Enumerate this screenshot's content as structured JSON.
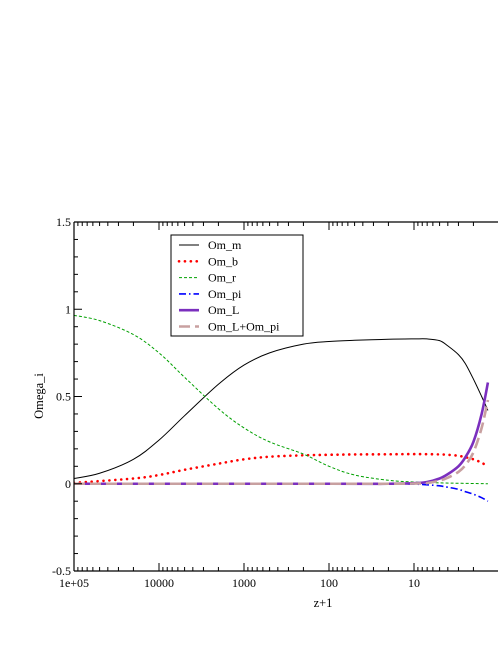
{
  "chart_data": {
    "type": "line",
    "title": "",
    "xlabel": "z+1",
    "ylabel": "Omega_i",
    "x_scale": "log",
    "x_reversed": true,
    "xlim": [
      100000,
      1.35
    ],
    "ylim": [
      -0.5,
      1.5
    ],
    "x_ticks": [
      {
        "value": 100000,
        "label": "1e+05"
      },
      {
        "value": 10000,
        "label": "10000"
      },
      {
        "value": 1000,
        "label": "1000"
      },
      {
        "value": 100,
        "label": "100"
      },
      {
        "value": 10,
        "label": "10"
      }
    ],
    "y_ticks": [
      {
        "value": -0.5,
        "label": "-0.5"
      },
      {
        "value": 0,
        "label": "0"
      },
      {
        "value": 0.5,
        "label": "0.5"
      },
      {
        "value": 1,
        "label": "1"
      },
      {
        "value": 1.5,
        "label": "1.5"
      }
    ],
    "grid": false,
    "legend_position": "top-left",
    "series": [
      {
        "name": "Om_m",
        "color": "#000000",
        "style": "solid",
        "x": [
          100000,
          50000,
          20000,
          10000,
          5000,
          2000,
          1000,
          500,
          200,
          100,
          50,
          20,
          10,
          7,
          5,
          4,
          3,
          2.5,
          2,
          1.6,
          1.35
        ],
        "y": [
          0.03,
          0.06,
          0.14,
          0.25,
          0.39,
          0.57,
          0.68,
          0.75,
          0.8,
          0.815,
          0.822,
          0.828,
          0.83,
          0.83,
          0.82,
          0.79,
          0.74,
          0.69,
          0.6,
          0.5,
          0.42
        ]
      },
      {
        "name": "Om_b",
        "color": "#ff0000",
        "style": "dotted",
        "x": [
          100000,
          20000,
          10000,
          5000,
          2000,
          1000,
          500,
          200,
          100,
          50,
          20,
          10,
          5,
          3,
          2,
          1.6,
          1.35
        ],
        "y": [
          0.005,
          0.03,
          0.05,
          0.08,
          0.115,
          0.14,
          0.155,
          0.163,
          0.166,
          0.168,
          0.169,
          0.17,
          0.168,
          0.16,
          0.14,
          0.12,
          0.1
        ]
      },
      {
        "name": "Om_r",
        "color": "#00a000",
        "style": "dashed",
        "x": [
          100000,
          50000,
          20000,
          10000,
          5000,
          2000,
          1000,
          500,
          200,
          100,
          50,
          20,
          10,
          5,
          1.35
        ],
        "y": [
          0.965,
          0.935,
          0.855,
          0.75,
          0.61,
          0.43,
          0.32,
          0.24,
          0.17,
          0.1,
          0.05,
          0.02,
          0.01,
          0.005,
          0.0
        ]
      },
      {
        "name": "Om_pi",
        "color": "#0000ff",
        "style": "dashdot",
        "x": [
          100000,
          10000,
          100,
          20,
          10,
          7,
          5,
          4,
          3,
          2.5,
          2,
          1.6,
          1.35
        ],
        "y": [
          0.0,
          0.0,
          0.0,
          0.0,
          -0.002,
          -0.006,
          -0.012,
          -0.02,
          -0.032,
          -0.045,
          -0.06,
          -0.08,
          -0.1
        ]
      },
      {
        "name": "Om_L",
        "color": "#7b2fbe",
        "style": "thick",
        "x": [
          100000,
          100,
          20,
          10,
          7,
          5,
          4,
          3,
          2.5,
          2,
          1.6,
          1.35
        ],
        "y": [
          0.0,
          0.0,
          0.0,
          0.003,
          0.01,
          0.03,
          0.055,
          0.1,
          0.15,
          0.24,
          0.4,
          0.58
        ]
      },
      {
        "name": "Om_L+Om_pi",
        "color": "#c8a0a0",
        "style": "longdash",
        "x": [
          100000,
          100,
          20,
          10,
          7,
          5,
          4,
          3,
          2.5,
          2,
          1.6,
          1.35
        ],
        "y": [
          0.0,
          0.0,
          0.0,
          0.001,
          0.004,
          0.018,
          0.035,
          0.068,
          0.105,
          0.18,
          0.32,
          0.48
        ]
      }
    ]
  }
}
